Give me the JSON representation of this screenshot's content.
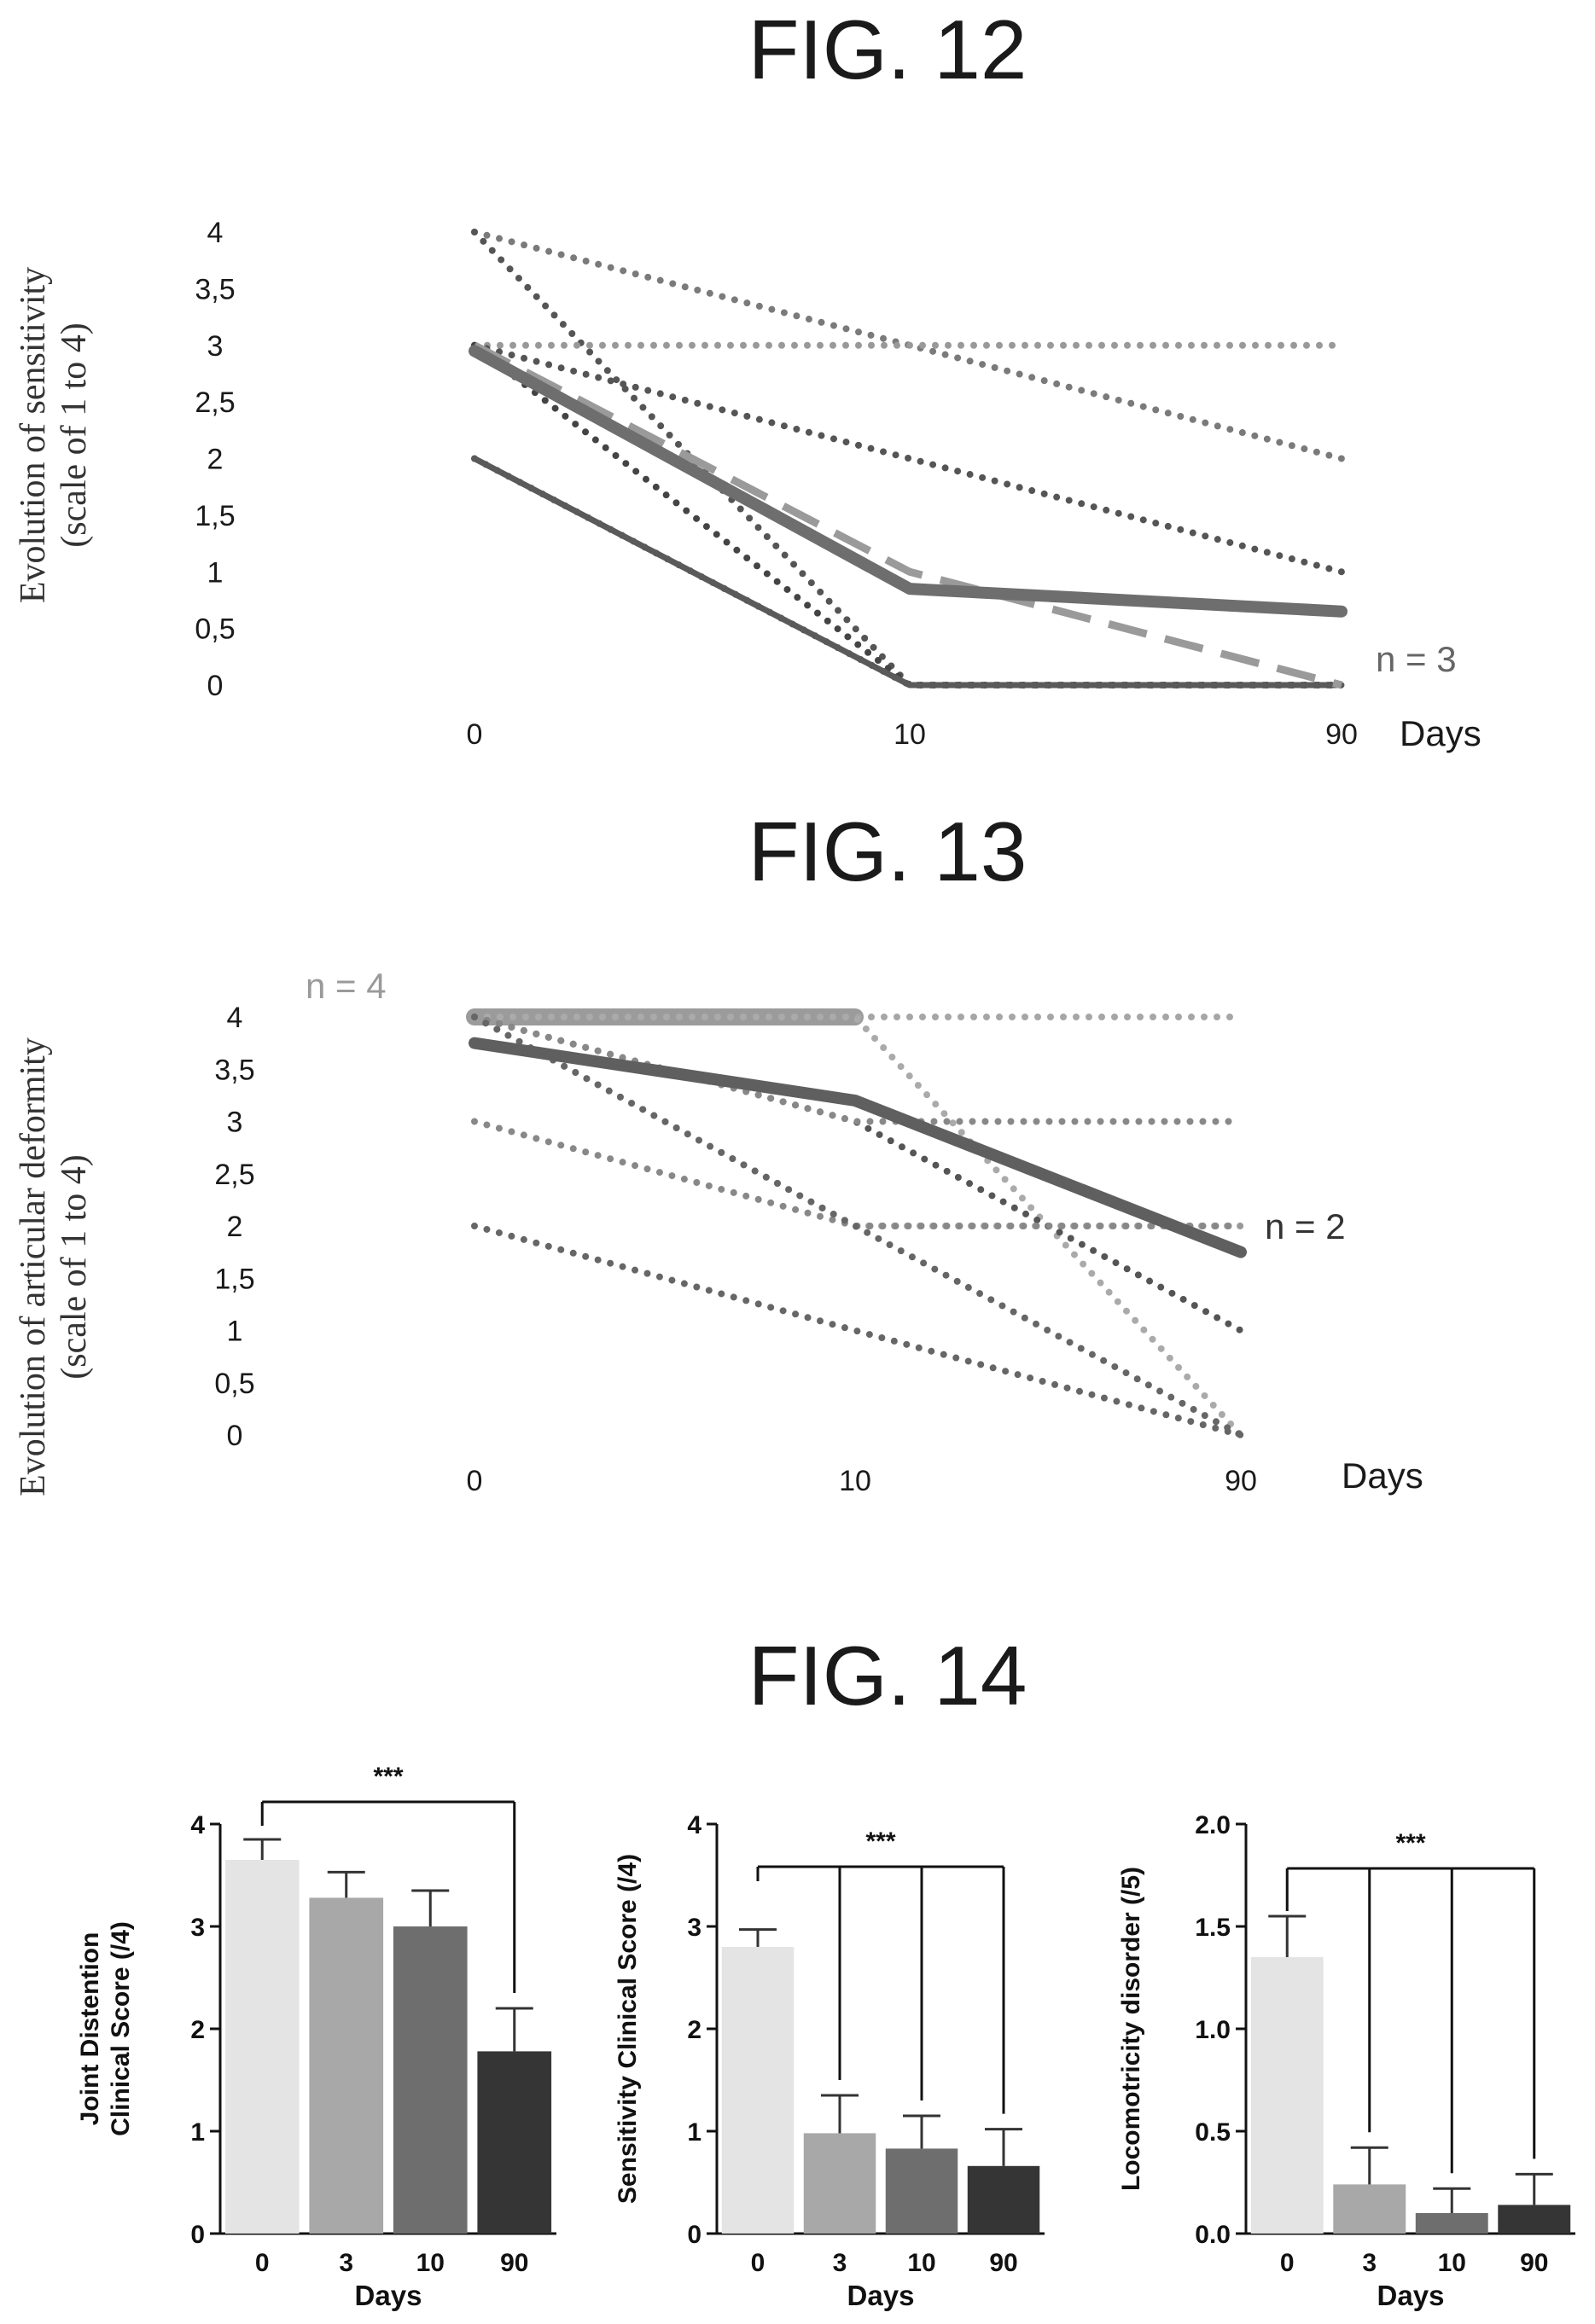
{
  "figures": [
    {
      "label": "FIG. 12"
    },
    {
      "label": "FIG. 13"
    },
    {
      "label": "FIG. 14"
    }
  ],
  "chart_data": [
    {
      "figure": "FIG. 12",
      "type": "line",
      "title": "",
      "ylabel": [
        "Evolution of sensitivity",
        "(scale of 1 to 4)"
      ],
      "xlabel": "Days",
      "x_categories": [
        "0",
        "10",
        "90"
      ],
      "y_ticks": [
        "0",
        "0,5",
        "1",
        "1,5",
        "2",
        "2,5",
        "3",
        "3,5",
        "4"
      ],
      "ylim": [
        0,
        4
      ],
      "grid": false,
      "legend": "none",
      "annotations": [
        {
          "text": "n = 3",
          "color": "#666666"
        }
      ],
      "series": [
        {
          "style": "dotted",
          "color": "#7a7a7a",
          "values": [
            4,
            3,
            2
          ]
        },
        {
          "style": "dotted",
          "color": "#555555",
          "values": [
            4,
            0,
            0
          ]
        },
        {
          "style": "dotted",
          "color": "#999999",
          "values": [
            3,
            3,
            3
          ]
        },
        {
          "style": "dotted",
          "color": "#555555",
          "values": [
            3,
            2,
            1
          ]
        },
        {
          "style": "dotted",
          "color": "#444444",
          "values": [
            3,
            0,
            0
          ]
        },
        {
          "style": "dotted",
          "color": "#555555",
          "values": [
            2,
            0,
            0
          ]
        },
        {
          "style": "solid",
          "color": "#5a5a5a",
          "values": [
            2,
            0,
            0
          ]
        },
        {
          "style": "dashed",
          "color": "#9a9a9a",
          "values": [
            3,
            1,
            0
          ]
        },
        {
          "style": "solid-thick",
          "color": "#6e6e6e",
          "values": [
            2.95,
            0.85,
            0.65
          ]
        }
      ]
    },
    {
      "figure": "FIG. 13",
      "type": "line",
      "title": "",
      "ylabel": [
        "Evolution of articular deformity",
        "(scale of 1 to 4)"
      ],
      "xlabel": "Days",
      "x_categories": [
        "0",
        "10",
        "90"
      ],
      "y_ticks": [
        "0",
        "0,5",
        "1",
        "1,5",
        "2",
        "2,5",
        "3",
        "3,5",
        "4"
      ],
      "ylim": [
        0,
        4
      ],
      "grid": false,
      "legend": "none",
      "annotations": [
        {
          "text": "n = 4",
          "color": "#9a9a9a"
        },
        {
          "text": "n = 2",
          "color": "#333333"
        }
      ],
      "series": [
        {
          "style": "thick-bar",
          "color": "#8a8a8a",
          "values": [
            4,
            4,
            null
          ]
        },
        {
          "style": "dotted",
          "color": "#a6a6a6",
          "values": [
            4,
            4,
            4
          ]
        },
        {
          "style": "dotted",
          "color": "#aaaaaa",
          "values": [
            4,
            4,
            0
          ]
        },
        {
          "style": "dotted",
          "color": "#999999",
          "values": [
            4,
            2,
            2
          ]
        },
        {
          "style": "dotted",
          "color": "#555555",
          "values": [
            4,
            3,
            1
          ]
        },
        {
          "style": "dotted",
          "color": "#888888",
          "values": [
            4,
            3,
            3
          ]
        },
        {
          "style": "dotted",
          "color": "#888888",
          "values": [
            3,
            2,
            2
          ]
        },
        {
          "style": "dotted",
          "color": "#666666",
          "values": [
            4,
            2,
            0
          ]
        },
        {
          "style": "dotted",
          "color": "#666666",
          "values": [
            2,
            1,
            0
          ]
        },
        {
          "style": "solid-thick",
          "color": "#5f5f5f",
          "values": [
            3.75,
            3.2,
            1.75
          ]
        }
      ]
    },
    {
      "figure": "FIG. 14",
      "type": "bar",
      "title": "",
      "ylabel": [
        "Joint Distention",
        "Clinical Score (/4)"
      ],
      "xlabel": "Days",
      "categories": [
        "0",
        "3",
        "10",
        "90"
      ],
      "values": [
        3.65,
        3.28,
        3.0,
        1.78
      ],
      "errors": [
        0.2,
        0.25,
        0.35,
        0.42
      ],
      "bar_colors": [
        "#e4e4e4",
        "#a8a8a8",
        "#6e6e6e",
        "#353535"
      ],
      "y_ticks": [
        "0",
        "1",
        "2",
        "3",
        "4"
      ],
      "ylim": [
        0,
        4
      ],
      "significance": [
        {
          "text": "***",
          "from": "0",
          "to": [
            "90"
          ]
        }
      ]
    },
    {
      "figure": "FIG. 14",
      "type": "bar",
      "title": "",
      "ylabel": [
        "Sensitivity Clinical Score (/4)"
      ],
      "xlabel": "Days",
      "categories": [
        "0",
        "3",
        "10",
        "90"
      ],
      "values": [
        2.8,
        0.98,
        0.83,
        0.66
      ],
      "errors": [
        0.17,
        0.37,
        0.32,
        0.36
      ],
      "bar_colors": [
        "#e4e4e4",
        "#a8a8a8",
        "#6e6e6e",
        "#353535"
      ],
      "y_ticks": [
        "0",
        "1",
        "2",
        "3",
        "4"
      ],
      "ylim": [
        0,
        4
      ],
      "significance": [
        {
          "text": "***",
          "from": "0",
          "to": [
            "3",
            "10",
            "90"
          ]
        }
      ]
    },
    {
      "figure": "FIG. 14",
      "type": "bar",
      "title": "",
      "ylabel": [
        "Locomotricity disorder (/5)"
      ],
      "xlabel": "Days",
      "categories": [
        "0",
        "3",
        "10",
        "90"
      ],
      "values": [
        1.35,
        0.24,
        0.1,
        0.14
      ],
      "errors": [
        0.2,
        0.18,
        0.12,
        0.15
      ],
      "bar_colors": [
        "#e4e4e4",
        "#a8a8a8",
        "#6e6e6e",
        "#353535"
      ],
      "y_ticks": [
        "0.0",
        "0.5",
        "1.0",
        "1.5",
        "2.0"
      ],
      "ylim": [
        0,
        2
      ],
      "significance": [
        {
          "text": "***",
          "from": "0",
          "to": [
            "3",
            "10",
            "90"
          ]
        }
      ]
    }
  ]
}
